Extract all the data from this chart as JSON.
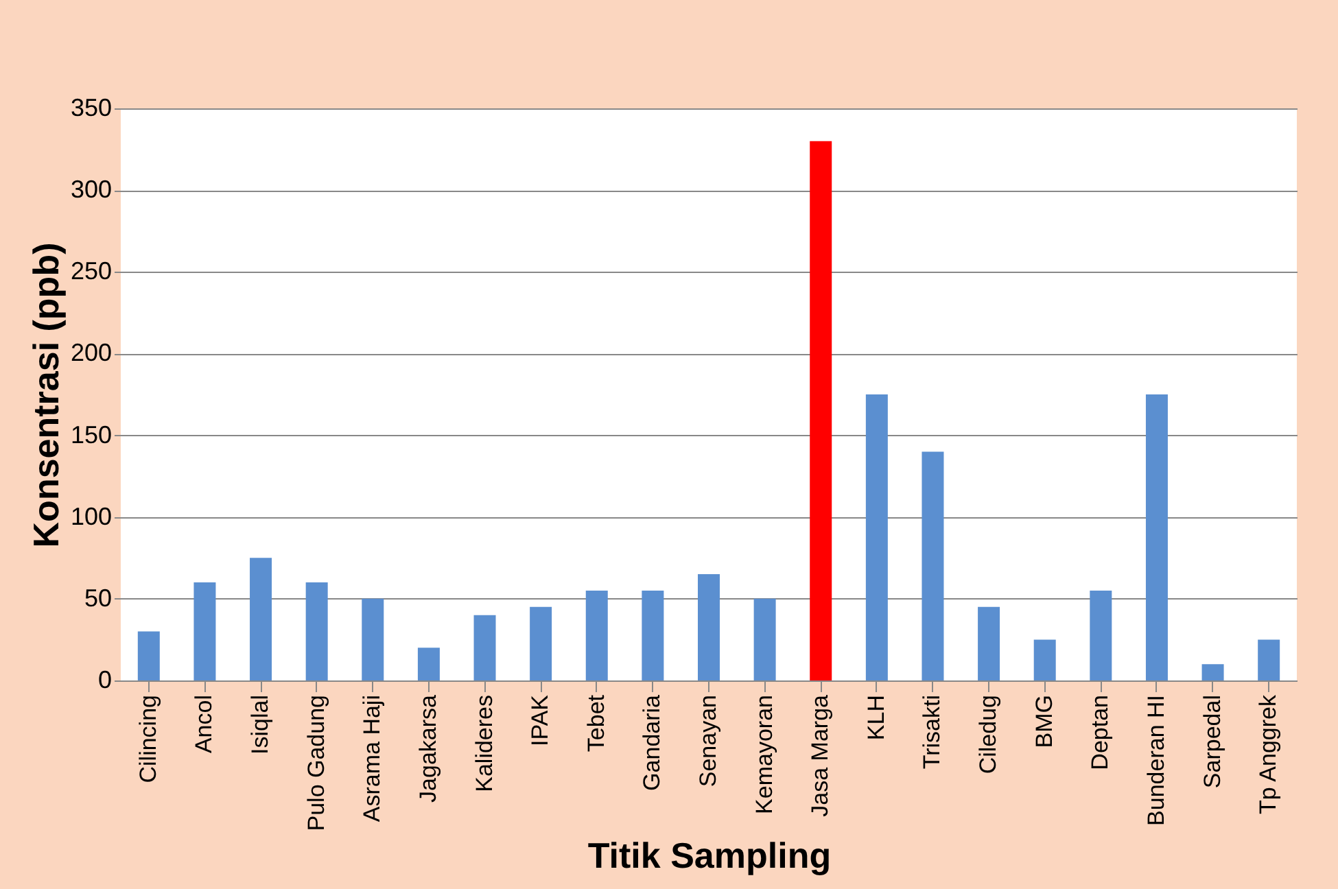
{
  "chart_data": {
    "type": "bar",
    "xlabel": "Titik Sampling",
    "ylabel": "Konsentrasi (ppb)",
    "categories": [
      "Cilincing",
      "Ancol",
      "Isiqlal",
      "Pulo Gadung",
      "Asrama Haji",
      "Jagakarsa",
      "Kalideres",
      "IPAK",
      "Tebet",
      "Gandaria",
      "Senayan",
      "Kemayoran",
      "Jasa Marga",
      "KLH",
      "Trisakti",
      "Ciledug",
      "BMG",
      "Deptan",
      "Bunderan HI",
      "Sarpedal",
      "Tp Anggrek"
    ],
    "values": [
      30,
      60,
      75,
      60,
      50,
      20,
      40,
      45,
      55,
      55,
      65,
      50,
      330,
      175,
      140,
      45,
      25,
      55,
      175,
      10,
      25
    ],
    "colors": [
      "#5b8fd0",
      "#5b8fd0",
      "#5b8fd0",
      "#5b8fd0",
      "#5b8fd0",
      "#5b8fd0",
      "#5b8fd0",
      "#5b8fd0",
      "#5b8fd0",
      "#5b8fd0",
      "#5b8fd0",
      "#5b8fd0",
      "#ff0000",
      "#5b8fd0",
      "#5b8fd0",
      "#5b8fd0",
      "#5b8fd0",
      "#5b8fd0",
      "#5b8fd0",
      "#5b8fd0",
      "#5b8fd0"
    ],
    "ylim": [
      0,
      350
    ],
    "yticks": [
      0,
      50,
      100,
      150,
      200,
      250,
      300,
      350
    ],
    "grid": "y"
  }
}
